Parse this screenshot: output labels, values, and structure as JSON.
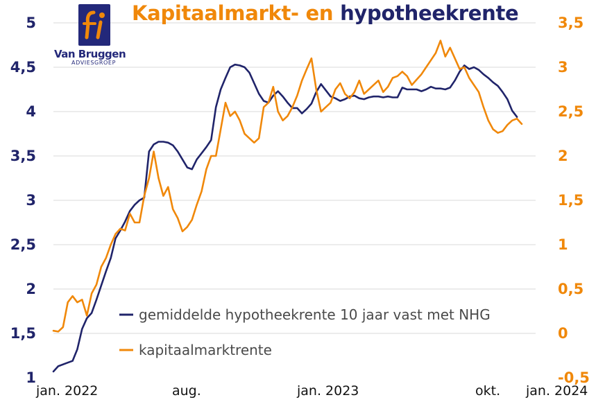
{
  "title": {
    "part1": "Kapitaalmarkt- en",
    "part2": "hypotheekrente"
  },
  "logo": {
    "mark": "fi",
    "name": "Van Bruggen",
    "subtitle": "ADVIESGROEP"
  },
  "colors": {
    "hypotheek": "#20246a",
    "kapitaal": "#f0880a",
    "grid": "#d9d9d9"
  },
  "chart_data": {
    "type": "line",
    "title": "Kapitaalmarkt- en hypotheekrente",
    "y_left": {
      "ticks": [
        "1",
        "1,5",
        "2",
        "2,5",
        "3",
        "3,5",
        "4",
        "4,5",
        "5"
      ],
      "range": [
        1,
        5
      ]
    },
    "y_right": {
      "ticks": [
        "-0,5",
        "0",
        "0,5",
        "1",
        "1,5",
        "2",
        "2,5",
        "3",
        "3,5"
      ],
      "range": [
        -0.5,
        3.5
      ]
    },
    "x_ticks": [
      {
        "label": "jan. 2022",
        "week": 0
      },
      {
        "label": "aug.",
        "week": 30
      },
      {
        "label": "jan. 2023",
        "week": 52
      },
      {
        "label": "okt.",
        "week": 91
      },
      {
        "label": "jan. 2024",
        "week": 104
      }
    ],
    "legend": {
      "placement": "bottom-center"
    },
    "grid": true,
    "series": [
      {
        "name": "gemiddelde hypotheekrente 10 jaar vast met NHG",
        "axis": "left",
        "x": [
          0,
          1,
          3,
          4,
          5,
          6,
          7,
          8,
          9,
          10,
          11,
          12,
          13,
          14,
          15,
          16,
          17,
          18,
          19,
          20,
          21,
          22,
          23,
          24,
          25,
          26,
          27,
          28,
          29,
          30,
          31,
          32,
          33,
          34,
          35,
          36,
          37,
          38,
          39,
          40,
          41,
          42,
          43,
          44,
          45,
          46,
          47,
          48,
          49,
          50,
          51,
          52,
          53,
          54,
          55,
          56,
          57,
          58,
          59,
          60,
          61,
          62,
          63,
          64,
          65,
          66,
          67,
          68,
          69,
          70,
          71,
          72,
          73,
          74,
          75,
          76,
          77,
          78,
          79,
          80,
          81,
          82,
          83,
          84,
          85,
          86,
          87,
          88,
          89,
          90,
          91,
          92,
          93,
          94,
          95,
          96,
          97
        ],
        "values": [
          1.07,
          1.13,
          1.17,
          1.19,
          1.32,
          1.55,
          1.67,
          1.73,
          1.88,
          2.04,
          2.2,
          2.35,
          2.57,
          2.66,
          2.76,
          2.88,
          2.95,
          3.0,
          3.03,
          3.55,
          3.63,
          3.66,
          3.66,
          3.65,
          3.62,
          3.55,
          3.46,
          3.37,
          3.35,
          3.46,
          3.53,
          3.6,
          3.68,
          4.05,
          4.25,
          4.38,
          4.5,
          4.53,
          4.52,
          4.5,
          4.44,
          4.32,
          4.2,
          4.12,
          4.1,
          4.18,
          4.23,
          4.17,
          4.1,
          4.04,
          4.04,
          3.98,
          4.03,
          4.09,
          4.22,
          4.31,
          4.24,
          4.17,
          4.15,
          4.12,
          4.14,
          4.17,
          4.18,
          4.15,
          4.14,
          4.16,
          4.17,
          4.17,
          4.16,
          4.17,
          4.16,
          4.16,
          4.27,
          4.25,
          4.25,
          4.25,
          4.23,
          4.25,
          4.28,
          4.26,
          4.26,
          4.25,
          4.27,
          4.35,
          4.45,
          4.52,
          4.48,
          4.5,
          4.47,
          4.42,
          4.38,
          4.33,
          4.29,
          4.22,
          4.14,
          4.01,
          3.94
        ]
      },
      {
        "name": "kapitaalmarktrente",
        "axis": "right",
        "x": [
          0,
          1,
          2,
          3,
          4,
          5,
          6,
          7,
          8,
          9,
          10,
          11,
          12,
          13,
          14,
          15,
          16,
          17,
          18,
          19,
          20,
          21,
          22,
          23,
          24,
          25,
          26,
          27,
          28,
          29,
          30,
          31,
          32,
          33,
          34,
          35,
          36,
          37,
          38,
          39,
          40,
          41,
          42,
          43,
          44,
          45,
          46,
          47,
          48,
          49,
          50,
          51,
          52,
          53,
          54,
          55,
          56,
          57,
          58,
          59,
          60,
          61,
          62,
          63,
          64,
          65,
          66,
          67,
          68,
          69,
          70,
          71,
          72,
          73,
          74,
          75,
          76,
          77,
          78,
          79,
          80,
          81,
          82,
          83,
          84,
          85,
          86,
          87,
          88,
          89,
          90,
          91,
          92,
          93,
          94,
          95,
          96,
          97,
          98
        ],
        "values": [
          0.03,
          0.02,
          0.07,
          0.35,
          0.42,
          0.35,
          0.38,
          0.2,
          0.45,
          0.55,
          0.75,
          0.85,
          1.0,
          1.12,
          1.18,
          1.16,
          1.35,
          1.25,
          1.25,
          1.55,
          1.75,
          2.05,
          1.75,
          1.55,
          1.65,
          1.4,
          1.3,
          1.15,
          1.2,
          1.28,
          1.45,
          1.6,
          1.85,
          2.0,
          2.0,
          2.3,
          2.6,
          2.45,
          2.5,
          2.4,
          2.25,
          2.2,
          2.15,
          2.2,
          2.55,
          2.6,
          2.78,
          2.5,
          2.4,
          2.45,
          2.55,
          2.68,
          2.85,
          2.98,
          3.1,
          2.75,
          2.5,
          2.55,
          2.6,
          2.75,
          2.82,
          2.7,
          2.65,
          2.72,
          2.85,
          2.7,
          2.75,
          2.8,
          2.85,
          2.72,
          2.78,
          2.88,
          2.9,
          2.95,
          2.9,
          2.8,
          2.86,
          2.92,
          3.0,
          3.08,
          3.16,
          3.3,
          3.12,
          3.22,
          3.1,
          2.98,
          3.0,
          2.88,
          2.8,
          2.72,
          2.55,
          2.4,
          2.3,
          2.26,
          2.28,
          2.35,
          2.4,
          2.42,
          2.36
        ]
      }
    ]
  }
}
